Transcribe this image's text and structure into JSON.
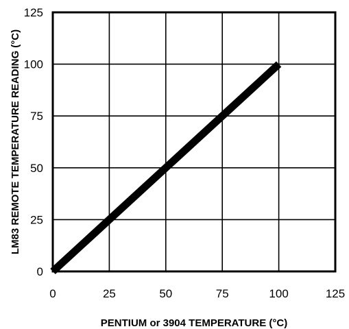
{
  "chart_data": {
    "type": "line",
    "xlabel": "PENTIUM or 3904 TEMPERATURE",
    "xlabel_unit": "(°C)",
    "ylabel": "LM83 REMOTE TEMPERATURE READING",
    "ylabel_unit": "(°C)",
    "xlim": [
      0,
      125
    ],
    "ylim": [
      0,
      125
    ],
    "x_ticks": [
      0,
      25,
      50,
      75,
      100,
      125
    ],
    "y_ticks": [
      0,
      25,
      50,
      75,
      100,
      125
    ],
    "grid": true,
    "legend": "none",
    "series": [
      {
        "x": [
          0,
          100
        ],
        "y": [
          0,
          100
        ]
      }
    ]
  }
}
